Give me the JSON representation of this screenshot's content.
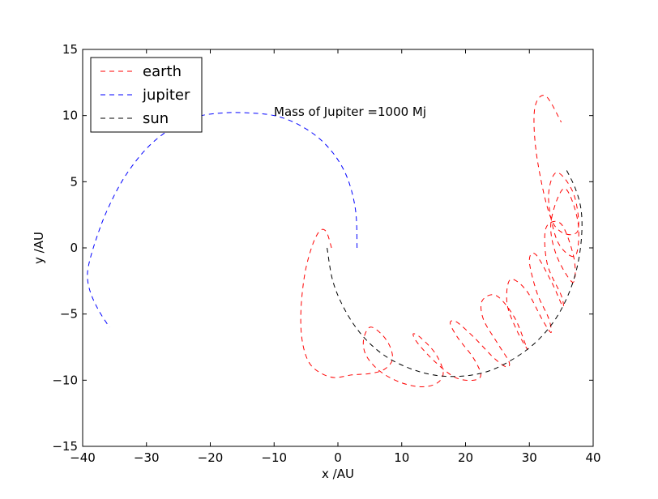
{
  "chart_data": {
    "type": "line",
    "title": "",
    "xlabel": "x /AU",
    "ylabel": "y /AU",
    "xlim": [
      -40,
      40
    ],
    "ylim": [
      -15,
      15
    ],
    "xticks": [
      -40,
      -30,
      -20,
      -10,
      0,
      10,
      20,
      30,
      40
    ],
    "yticks": [
      -15,
      -10,
      -5,
      0,
      5,
      10,
      15
    ],
    "xtick_labels": [
      "−40",
      "−30",
      "−20",
      "−10",
      "0",
      "10",
      "20",
      "30",
      "40"
    ],
    "ytick_labels": [
      "−15",
      "−10",
      "−5",
      "0",
      "5",
      "10",
      "15"
    ],
    "grid": false,
    "legend_position": "top-left",
    "annotation": "Mass of Jupiter =1000 Mj",
    "line_style": "dashed",
    "series": [
      {
        "name": "earth",
        "color": "#ff0000",
        "x": [
          -1.0,
          -1.8,
          -2.8,
          -4.0,
          -5.2,
          -5.8,
          -5.6,
          -4.6,
          -2.9,
          -0.6,
          2.2,
          5.0,
          7.2,
          8.5,
          8.2,
          6.8,
          5.0,
          4.0,
          4.5,
          6.8,
          10.0,
          13.2,
          15.6,
          16.5,
          15.3,
          13.0,
          11.8,
          12.5,
          15.2,
          18.4,
          21.2,
          22.4,
          21.2,
          18.8,
          17.6,
          18.6,
          21.4,
          24.4,
          26.4,
          26.8,
          25.0,
          22.8,
          22.6,
          24.8,
          27.6,
          29.4,
          29.6,
          28.0,
          26.5,
          27.0,
          29.5,
          32.0,
          33.4,
          33.0,
          31.2,
          30.0,
          31.0,
          33.5,
          35.2,
          35.0,
          32.8,
          32.6,
          35.0,
          37.0,
          36.8,
          34.2,
          33.4,
          35.5,
          37.6,
          37.2,
          34.4,
          33.0,
          34.3,
          37.0,
          37.5,
          33.8,
          31.3,
          30.8,
          32.5,
          35.0
        ],
        "y": [
          0.0,
          1.2,
          1.3,
          0.2,
          -2.0,
          -4.8,
          -7.0,
          -8.6,
          -9.4,
          -9.8,
          -9.6,
          -9.5,
          -9.2,
          -8.5,
          -7.5,
          -6.5,
          -6.0,
          -7.0,
          -8.2,
          -9.4,
          -10.2,
          -10.5,
          -10.2,
          -9.4,
          -8.0,
          -6.8,
          -6.5,
          -7.2,
          -8.6,
          -9.8,
          -10.0,
          -9.6,
          -8.3,
          -6.8,
          -5.7,
          -5.6,
          -6.8,
          -8.3,
          -9.0,
          -8.6,
          -7.2,
          -5.4,
          -4.0,
          -3.6,
          -5.2,
          -7.3,
          -7.6,
          -6.2,
          -4.2,
          -2.4,
          -3.2,
          -5.4,
          -6.4,
          -5.3,
          -3.4,
          -1.0,
          -0.5,
          -2.6,
          -4.4,
          -3.6,
          -1.2,
          1.5,
          1.8,
          -0.8,
          -2.6,
          -0.5,
          2.0,
          4.5,
          2.0,
          -0.6,
          0.5,
          3.8,
          5.7,
          4.0,
          1.2,
          1.8,
          6.5,
          10.4,
          11.5,
          9.5
        ]
      },
      {
        "name": "jupiter",
        "color": "#0000ff",
        "x": [
          3.0,
          2.8,
          1.7,
          -0.2,
          -3.0,
          -6.5,
          -10.0,
          -14.0,
          -18.0,
          -22.2,
          -26.2,
          -30.0,
          -33.5,
          -36.2,
          -38.0,
          -39.1,
          -39.2,
          -38.6,
          -37.4,
          -35.8
        ],
        "y": [
          0.0,
          2.7,
          5.0,
          6.8,
          8.3,
          9.4,
          10.0,
          10.2,
          10.2,
          9.9,
          9.0,
          7.5,
          5.3,
          2.8,
          0.5,
          -1.4,
          -2.5,
          -3.6,
          -4.8,
          -6.0
        ]
      },
      {
        "name": "sun",
        "color": "#000000",
        "x": [
          -1.7,
          -0.8,
          1.0,
          3.6,
          6.9,
          10.7,
          14.9,
          19.3,
          23.7,
          27.8,
          31.3,
          34.2,
          36.3,
          37.6,
          38.2,
          38.1,
          37.2,
          35.8
        ],
        "y": [
          0.0,
          -2.5,
          -4.6,
          -6.5,
          -8.0,
          -9.0,
          -9.6,
          -9.7,
          -9.3,
          -8.3,
          -7.0,
          -5.3,
          -3.3,
          -1.2,
          1.0,
          2.9,
          4.5,
          5.9
        ]
      }
    ]
  }
}
